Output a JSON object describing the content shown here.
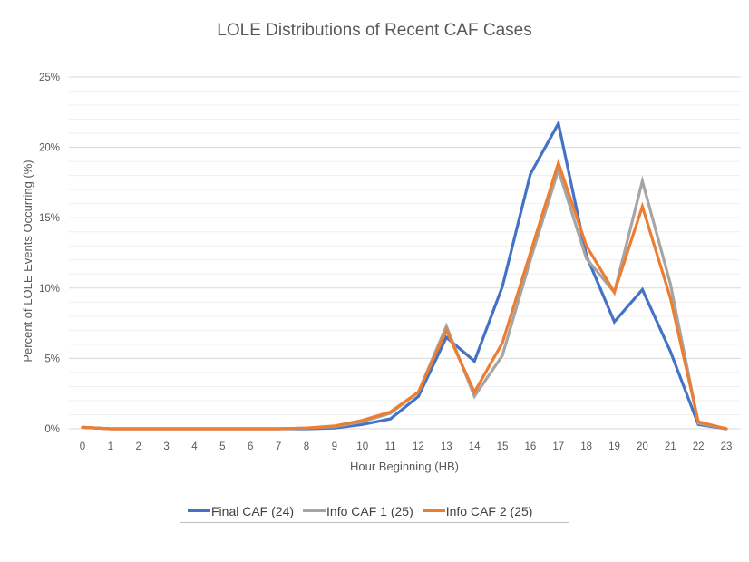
{
  "chart_data": {
    "type": "line",
    "title": "LOLE Distributions of Recent CAF Cases",
    "xlabel": "Hour Beginning (HB)",
    "ylabel": "Percent of LOLE Events Occurring (%)",
    "ylim": [
      0,
      25
    ],
    "y_major_ticks": [
      0,
      5,
      10,
      15,
      20,
      25
    ],
    "y_tick_labels": [
      "0%",
      "5%",
      "10%",
      "15%",
      "20%",
      "25%"
    ],
    "y_minor_step": 1,
    "grid": true,
    "legend_position": "bottom",
    "categories": [
      "0",
      "1",
      "2",
      "3",
      "4",
      "5",
      "6",
      "7",
      "8",
      "9",
      "10",
      "11",
      "12",
      "13",
      "14",
      "15",
      "16",
      "17",
      "18",
      "19",
      "20",
      "21",
      "22",
      "23"
    ],
    "series": [
      {
        "name": "Final CAF (24)",
        "color": "#4472C4",
        "values": [
          0.1,
          0.0,
          0.0,
          0.0,
          0.0,
          0.0,
          0.0,
          0.0,
          0.0,
          0.05,
          0.3,
          0.7,
          2.3,
          6.5,
          4.8,
          10.1,
          18.1,
          21.7,
          12.3,
          7.6,
          9.9,
          5.5,
          0.3,
          0.0
        ]
      },
      {
        "name": "Info CAF 1 (25)",
        "color": "#A5A5A5",
        "values": [
          0.1,
          0.0,
          0.0,
          0.0,
          0.0,
          0.0,
          0.0,
          0.0,
          0.05,
          0.15,
          0.5,
          1.1,
          2.6,
          7.3,
          2.3,
          5.2,
          12.0,
          18.4,
          12.1,
          9.7,
          17.6,
          10.3,
          0.4,
          0.0
        ]
      },
      {
        "name": "Info CAF 2 (25)",
        "color": "#ED7D31",
        "values": [
          0.1,
          0.0,
          0.0,
          0.0,
          0.0,
          0.0,
          0.0,
          0.0,
          0.05,
          0.2,
          0.6,
          1.2,
          2.6,
          7.0,
          2.6,
          6.1,
          12.5,
          18.9,
          13.0,
          9.7,
          15.8,
          9.3,
          0.5,
          0.0
        ]
      }
    ]
  }
}
